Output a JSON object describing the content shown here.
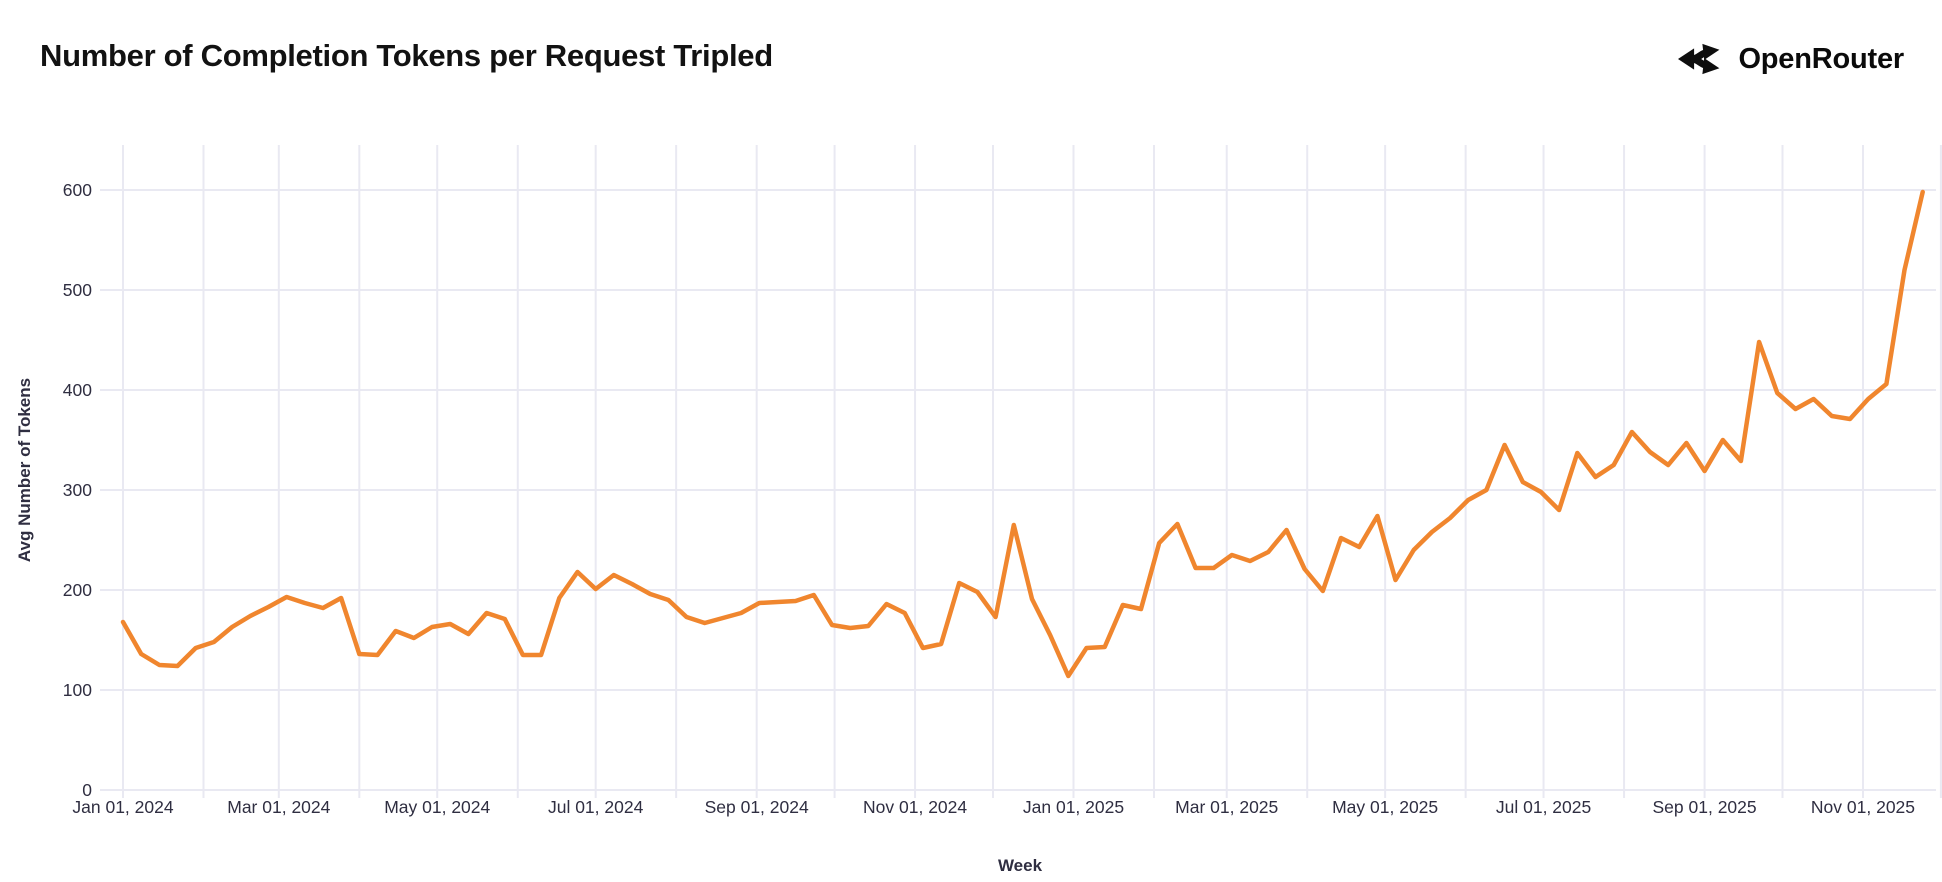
{
  "header": {
    "title": "Number of Completion Tokens per Request Tripled",
    "brand": "OpenRouter"
  },
  "chart_data": {
    "type": "line",
    "title": "Number of Completion Tokens per Request Tripled",
    "xlabel": "Week",
    "ylabel": "Avg Number of Tokens",
    "ylim": [
      0,
      600
    ],
    "yticks": [
      0,
      100,
      200,
      300,
      400,
      500,
      600
    ],
    "grid": true,
    "legend_position": "none",
    "xticks": [
      {
        "label": "Jan 01, 2024",
        "date": "2024-01-01"
      },
      {
        "label": "Mar 01, 2024",
        "date": "2024-03-01"
      },
      {
        "label": "May 01, 2024",
        "date": "2024-05-01"
      },
      {
        "label": "Jul 01, 2024",
        "date": "2024-07-01"
      },
      {
        "label": "Sep 01, 2024",
        "date": "2024-09-01"
      },
      {
        "label": "Nov 01, 2024",
        "date": "2024-11-01"
      },
      {
        "label": "Jan 01, 2025",
        "date": "2025-01-01"
      },
      {
        "label": "Mar 01, 2025",
        "date": "2025-03-01"
      },
      {
        "label": "May 01, 2025",
        "date": "2025-05-01"
      },
      {
        "label": "Jul 01, 2025",
        "date": "2025-07-01"
      },
      {
        "label": "Sep 01, 2025",
        "date": "2025-09-01"
      },
      {
        "label": "Nov 01, 2025",
        "date": "2025-11-01"
      }
    ],
    "x": [
      "2024-01-01",
      "2024-01-08",
      "2024-01-15",
      "2024-01-22",
      "2024-01-29",
      "2024-02-05",
      "2024-02-12",
      "2024-02-19",
      "2024-02-26",
      "2024-03-04",
      "2024-03-11",
      "2024-03-18",
      "2024-03-25",
      "2024-04-01",
      "2024-04-08",
      "2024-04-15",
      "2024-04-22",
      "2024-04-29",
      "2024-05-06",
      "2024-05-13",
      "2024-05-20",
      "2024-05-27",
      "2024-06-03",
      "2024-06-10",
      "2024-06-17",
      "2024-06-24",
      "2024-07-01",
      "2024-07-08",
      "2024-07-15",
      "2024-07-22",
      "2024-07-29",
      "2024-08-05",
      "2024-08-12",
      "2024-08-19",
      "2024-08-26",
      "2024-09-02",
      "2024-09-09",
      "2024-09-16",
      "2024-09-23",
      "2024-09-30",
      "2024-10-07",
      "2024-10-14",
      "2024-10-21",
      "2024-10-28",
      "2024-11-04",
      "2024-11-11",
      "2024-11-18",
      "2024-11-25",
      "2024-12-02",
      "2024-12-09",
      "2024-12-16",
      "2024-12-23",
      "2024-12-30",
      "2025-01-06",
      "2025-01-13",
      "2025-01-20",
      "2025-01-27",
      "2025-02-03",
      "2025-02-10",
      "2025-02-17",
      "2025-02-24",
      "2025-03-03",
      "2025-03-10",
      "2025-03-17",
      "2025-03-24",
      "2025-03-31",
      "2025-04-07",
      "2025-04-14",
      "2025-04-21",
      "2025-04-28",
      "2025-05-05",
      "2025-05-12",
      "2025-05-19",
      "2025-05-26",
      "2025-06-02",
      "2025-06-09",
      "2025-06-16",
      "2025-06-23",
      "2025-06-30",
      "2025-07-07",
      "2025-07-14",
      "2025-07-21",
      "2025-07-28",
      "2025-08-04",
      "2025-08-11",
      "2025-08-18",
      "2025-08-25",
      "2025-09-01",
      "2025-09-08",
      "2025-09-15",
      "2025-09-22",
      "2025-09-29",
      "2025-10-06",
      "2025-10-13",
      "2025-10-20",
      "2025-10-27",
      "2025-11-03",
      "2025-11-10",
      "2025-11-17",
      "2025-11-24"
    ],
    "values": [
      168,
      136,
      125,
      124,
      142,
      148,
      163,
      174,
      183,
      193,
      187,
      182,
      192,
      136,
      135,
      159,
      152,
      163,
      166,
      156,
      177,
      171,
      135,
      135,
      192,
      218,
      201,
      215,
      206,
      196,
      190,
      173,
      167,
      172,
      177,
      187,
      188,
      189,
      195,
      165,
      162,
      164,
      186,
      177,
      142,
      146,
      207,
      198,
      173,
      265,
      191,
      155,
      114,
      142,
      143,
      185,
      181,
      247,
      266,
      222,
      222,
      235,
      229,
      238,
      260,
      221,
      199,
      252,
      243,
      274,
      210,
      240,
      258,
      272,
      290,
      300,
      345,
      308,
      298,
      280,
      337,
      313,
      325,
      358,
      338,
      325,
      347,
      319,
      350,
      329,
      448,
      397,
      381,
      391,
      374,
      371,
      391,
      406,
      520,
      598
    ],
    "colors": {
      "line": "#F0862E",
      "grid": "#E9E9F2",
      "title_text": "#121212",
      "axis_text": "#2F2E41",
      "background": "#FFFFFF"
    }
  }
}
